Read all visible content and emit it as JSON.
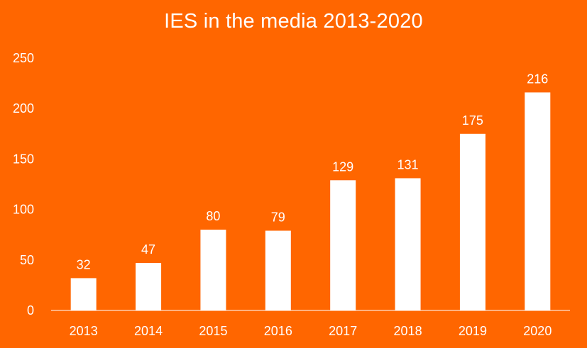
{
  "chart_data": {
    "type": "bar",
    "title": "IES in the media 2013-2020",
    "xlabel": "",
    "ylabel": "",
    "categories": [
      "2013",
      "2014",
      "2015",
      "2016",
      "2017",
      "2018",
      "2019",
      "2020"
    ],
    "values": [
      32,
      47,
      80,
      79,
      129,
      131,
      175,
      216
    ],
    "ylim": [
      0,
      250
    ],
    "yticks": [
      0,
      50,
      100,
      150,
      200,
      250
    ],
    "grid": false,
    "legend": "none",
    "colors": {
      "background": "#FF6600",
      "bar": "#ffffff",
      "text": "#ffffff",
      "axis": "#ffffff"
    }
  }
}
